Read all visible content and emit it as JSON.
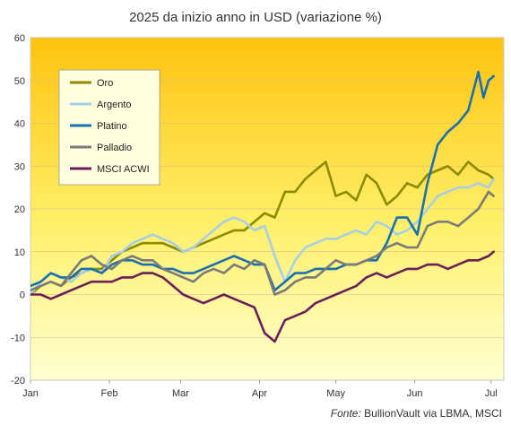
{
  "chart_data": {
    "type": "line",
    "title": "2025 da inizio anno in USD (variazione %)",
    "ylim": [
      -20,
      60
    ],
    "yticks": [
      -20,
      -10,
      0,
      10,
      20,
      30,
      40,
      50,
      60
    ],
    "xlim": [
      0,
      186
    ],
    "xticks": [
      {
        "label": "Jan",
        "x": 0
      },
      {
        "label": "Feb",
        "x": 31
      },
      {
        "label": "Mar",
        "x": 59
      },
      {
        "label": "Apr",
        "x": 90
      },
      {
        "label": "May",
        "x": 120
      },
      {
        "label": "Jun",
        "x": 151
      },
      {
        "label": "Jul",
        "x": 181
      }
    ],
    "legend_position": "top-left",
    "series": [
      {
        "name": "Oro",
        "color": "#8c8a00",
        "x": [
          0,
          4,
          8,
          12,
          16,
          20,
          24,
          28,
          32,
          36,
          40,
          44,
          48,
          52,
          56,
          60,
          64,
          68,
          72,
          76,
          80,
          84,
          88,
          92,
          96,
          100,
          104,
          108,
          112,
          116,
          120,
          124,
          128,
          132,
          136,
          140,
          144,
          148,
          152,
          156,
          160,
          164,
          168,
          172,
          176,
          180,
          182
        ],
        "y": [
          0,
          2,
          3,
          2,
          4,
          5,
          6,
          6,
          8,
          10,
          11,
          12,
          12,
          12,
          11,
          10,
          11,
          12,
          13,
          14,
          15,
          15,
          17,
          19,
          18,
          24,
          24,
          27,
          29,
          31,
          23,
          24,
          22,
          28,
          26,
          21,
          23,
          26,
          25,
          28,
          29,
          30,
          28,
          31,
          29,
          28,
          27
        ]
      },
      {
        "name": "Argento",
        "color": "#a8cde6",
        "x": [
          0,
          4,
          8,
          12,
          16,
          20,
          24,
          28,
          32,
          36,
          40,
          44,
          48,
          52,
          56,
          60,
          64,
          68,
          72,
          76,
          80,
          84,
          88,
          92,
          96,
          100,
          104,
          108,
          112,
          116,
          120,
          124,
          128,
          132,
          136,
          140,
          144,
          148,
          152,
          156,
          160,
          164,
          168,
          172,
          176,
          180,
          182
        ],
        "y": [
          0,
          3,
          5,
          4,
          3,
          5,
          6,
          5,
          9,
          10,
          12,
          13,
          14,
          13,
          12,
          10,
          11,
          13,
          15,
          17,
          18,
          17,
          15,
          16,
          9,
          3,
          8,
          11,
          12,
          13,
          13,
          14,
          15,
          14,
          17,
          16,
          14,
          15,
          17,
          20,
          23,
          24,
          25,
          25,
          26,
          25,
          27
        ]
      },
      {
        "name": "Platino",
        "color": "#1a6fae",
        "x": [
          0,
          4,
          8,
          12,
          16,
          20,
          24,
          28,
          32,
          36,
          40,
          44,
          48,
          52,
          56,
          60,
          64,
          68,
          72,
          76,
          80,
          84,
          88,
          92,
          96,
          100,
          104,
          108,
          112,
          116,
          120,
          124,
          128,
          132,
          136,
          140,
          144,
          148,
          152,
          156,
          160,
          164,
          168,
          172,
          176,
          178,
          180,
          182
        ],
        "y": [
          2,
          3,
          5,
          4,
          4,
          6,
          6,
          5,
          7,
          8,
          8,
          7,
          7,
          6,
          6,
          5,
          5,
          6,
          7,
          8,
          9,
          8,
          7,
          7,
          1,
          3,
          5,
          5,
          6,
          6,
          6,
          7,
          7,
          8,
          8,
          12,
          18,
          18,
          14,
          26,
          35,
          38,
          40,
          43,
          52,
          46,
          50,
          51
        ]
      },
      {
        "name": "Palladio",
        "color": "#7a7a7a",
        "x": [
          0,
          4,
          8,
          12,
          16,
          20,
          24,
          28,
          32,
          36,
          40,
          44,
          48,
          52,
          56,
          60,
          64,
          68,
          72,
          76,
          80,
          84,
          88,
          92,
          96,
          100,
          104,
          108,
          112,
          116,
          120,
          124,
          128,
          132,
          136,
          140,
          144,
          148,
          152,
          156,
          160,
          164,
          168,
          172,
          176,
          180,
          182
        ],
        "y": [
          1,
          2,
          3,
          2,
          5,
          8,
          9,
          7,
          6,
          8,
          9,
          8,
          8,
          6,
          5,
          4,
          3,
          5,
          6,
          5,
          7,
          6,
          8,
          7,
          0,
          1,
          3,
          4,
          4,
          6,
          8,
          7,
          7,
          8,
          9,
          11,
          12,
          11,
          11,
          16,
          17,
          17,
          16,
          18,
          20,
          24,
          23
        ]
      },
      {
        "name": "MSCI ACWI",
        "color": "#6b1e5c",
        "x": [
          0,
          4,
          8,
          12,
          16,
          20,
          24,
          28,
          32,
          36,
          40,
          44,
          48,
          52,
          56,
          60,
          64,
          68,
          72,
          76,
          80,
          84,
          88,
          92,
          96,
          100,
          104,
          108,
          112,
          116,
          120,
          124,
          128,
          132,
          136,
          140,
          144,
          148,
          152,
          156,
          160,
          164,
          168,
          172,
          176,
          180,
          182
        ],
        "y": [
          0,
          0,
          -1,
          0,
          1,
          2,
          3,
          3,
          3,
          4,
          4,
          5,
          5,
          4,
          2,
          0,
          -1,
          -2,
          -1,
          0,
          -1,
          -2,
          -3,
          -9,
          -11,
          -6,
          -5,
          -4,
          -2,
          -1,
          0,
          1,
          2,
          4,
          5,
          4,
          5,
          6,
          6,
          7,
          7,
          6,
          7,
          8,
          8,
          9,
          10
        ]
      }
    ]
  },
  "source": {
    "label": "Fonte:",
    "text": "BullionVault via LBMA, MSCI"
  }
}
